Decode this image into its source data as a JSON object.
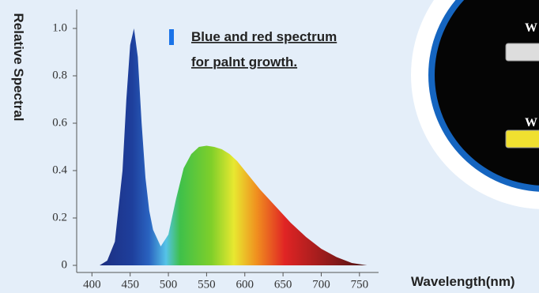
{
  "chart_data": {
    "type": "area",
    "y_label": "Relative Spectral",
    "x_label": "Wavelength(nm)",
    "annotations": [
      "Blue and red spectrum",
      "for palnt growth."
    ],
    "x": [
      410,
      420,
      430,
      440,
      445,
      450,
      455,
      460,
      465,
      470,
      475,
      480,
      490,
      500,
      510,
      520,
      530,
      540,
      550,
      560,
      570,
      580,
      590,
      600,
      620,
      640,
      660,
      680,
      700,
      720,
      740,
      760
    ],
    "values": [
      0,
      0.02,
      0.1,
      0.4,
      0.7,
      0.93,
      1.0,
      0.88,
      0.6,
      0.37,
      0.23,
      0.15,
      0.08,
      0.13,
      0.28,
      0.41,
      0.47,
      0.5,
      0.505,
      0.5,
      0.49,
      0.47,
      0.44,
      0.4,
      0.32,
      0.25,
      0.18,
      0.12,
      0.07,
      0.035,
      0.01,
      0
    ],
    "xlim": [
      380,
      775
    ],
    "ylim": [
      -0.03,
      1.08
    ],
    "xticks": [
      400,
      450,
      500,
      550,
      600,
      650,
      700,
      750
    ],
    "yticks": [
      0,
      0.2,
      0.4,
      0.6,
      0.8,
      {
        "value": 1,
        "label": "1.0"
      }
    ],
    "legend_color": "#1a73e8",
    "decor_labels": [
      "W",
      "W"
    ]
  }
}
